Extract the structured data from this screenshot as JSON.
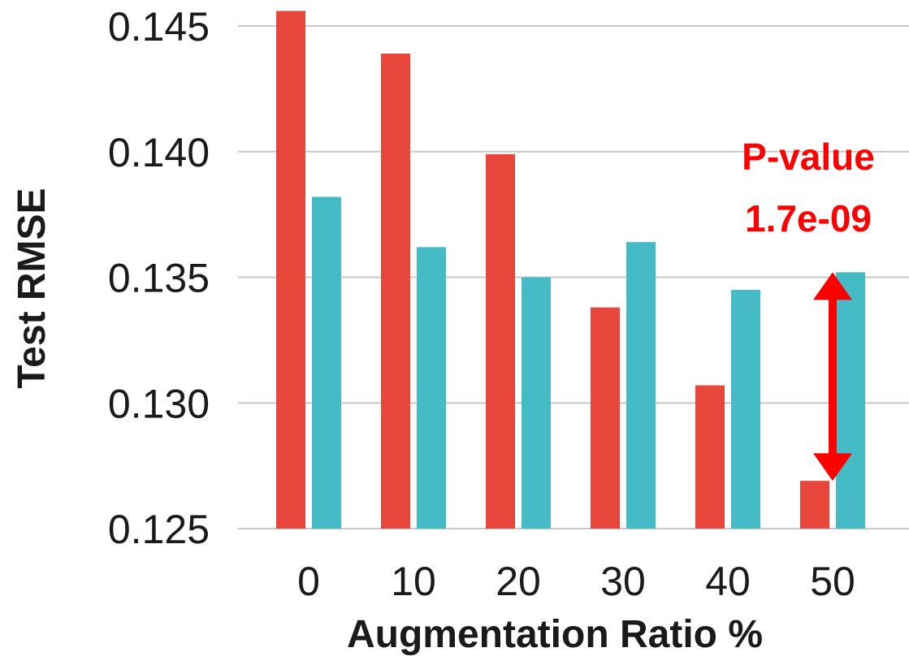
{
  "chart_data": {
    "type": "bar",
    "xlabel": "Augmentation Ratio %",
    "ylabel": "Test RMSE",
    "categories": [
      "0",
      "10",
      "20",
      "30",
      "40",
      "50"
    ],
    "ylim": [
      0.125,
      0.145
    ],
    "yticks": [
      "0.125",
      "0.130",
      "0.135",
      "0.140",
      "0.145"
    ],
    "grid": true,
    "series": [
      {
        "color": "#E8463A",
        "values": [
          0.1456,
          0.1439,
          0.1399,
          0.1338,
          0.1307,
          0.1269
        ]
      },
      {
        "color": "#45BCC5",
        "values": [
          0.1382,
          0.1362,
          0.135,
          0.1364,
          0.1345,
          0.1352
        ]
      }
    ],
    "annotation": {
      "line1": "P-value",
      "line2": "1.7e-09",
      "color": "#FF0000",
      "category": "50",
      "from_value": 0.1269,
      "to_value": 0.1352
    }
  }
}
